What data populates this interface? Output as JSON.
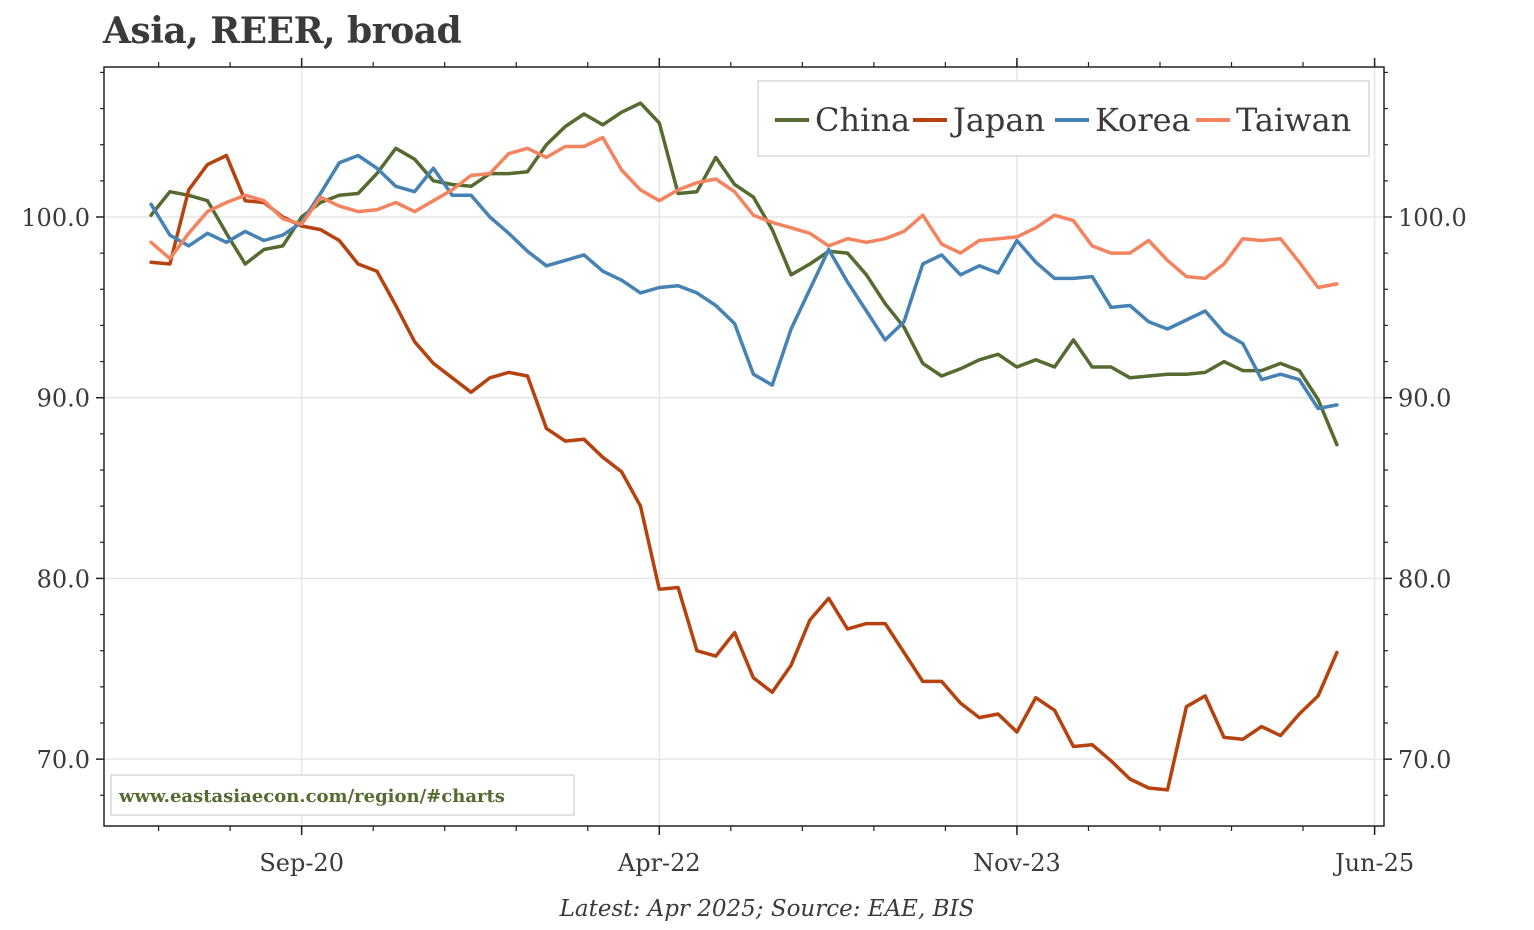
{
  "title": "Asia, REER, broad",
  "source": "Latest: Apr 2025; Source: EAE, BIS",
  "watermark": "www.eastasiaecon.com/region/#charts",
  "colors": {
    "China": "#556b2f",
    "Japan": "#b5420f",
    "Korea": "#4682b4",
    "Taiwan": "#f4845f",
    "watermark": "#556b2f",
    "text": "#3a3a3a",
    "grid": "#e6e6e6"
  },
  "chart_data": {
    "type": "line",
    "title": "Asia, REER, broad",
    "xlabel": "",
    "ylabel": "",
    "x_start": "Jan 2020",
    "x_end": "Apr 2025",
    "frequency": "monthly",
    "xlim_months": [
      -2.5,
      65.5
    ],
    "ylim": [
      66.3,
      108.3
    ],
    "yticks": [
      70,
      80,
      90,
      100
    ],
    "ytick_labels": [
      "70.0",
      "80.0",
      "90.0",
      "100.0"
    ],
    "xticks": [
      {
        "month_index": 8,
        "label": "Sep-20"
      },
      {
        "month_index": 27,
        "label": "Apr-22"
      },
      {
        "month_index": 46,
        "label": "Nov-23"
      },
      {
        "month_index": 65,
        "label": "Jun-25"
      }
    ],
    "legend_position": "top-right",
    "grid": true,
    "series": [
      {
        "name": "China",
        "values": [
          100.1,
          101.4,
          101.2,
          100.9,
          99.1,
          97.4,
          98.2,
          98.4,
          100.0,
          100.8,
          101.2,
          101.3,
          102.4,
          103.8,
          103.2,
          102.0,
          101.8,
          101.7,
          102.4,
          102.4,
          102.5,
          104.0,
          105.0,
          105.7,
          105.1,
          105.8,
          106.3,
          105.2,
          101.3,
          101.4,
          103.3,
          101.8,
          101.1,
          99.3,
          96.8,
          97.4,
          98.1,
          98.0,
          96.8,
          95.2,
          93.9,
          91.9,
          91.2,
          91.6,
          92.1,
          92.4,
          91.7,
          92.1,
          91.7,
          93.2,
          91.7,
          91.7,
          91.1,
          91.2,
          91.3,
          91.3,
          91.4,
          92.0,
          91.5,
          91.5,
          91.9,
          91.5,
          89.9,
          87.4
        ]
      },
      {
        "name": "Japan",
        "values": [
          97.5,
          97.4,
          101.5,
          102.9,
          103.4,
          100.9,
          100.8,
          100.0,
          99.5,
          99.3,
          98.7,
          97.4,
          97.0,
          95.1,
          93.1,
          91.9,
          91.1,
          90.3,
          91.1,
          91.4,
          91.2,
          88.3,
          87.6,
          87.7,
          86.7,
          85.9,
          84.0,
          79.4,
          79.5,
          76.0,
          75.7,
          77.0,
          74.5,
          73.7,
          75.2,
          77.7,
          78.9,
          77.2,
          77.5,
          77.5,
          75.9,
          74.3,
          74.3,
          73.1,
          72.3,
          72.5,
          71.5,
          73.4,
          72.7,
          70.7,
          70.8,
          69.9,
          68.9,
          68.4,
          68.3,
          72.9,
          73.5,
          71.2,
          71.1,
          71.8,
          71.3,
          72.5,
          73.5,
          75.9
        ]
      },
      {
        "name": "Korea",
        "values": [
          100.7,
          99.0,
          98.4,
          99.1,
          98.6,
          99.2,
          98.7,
          99.0,
          99.7,
          101.3,
          103.0,
          103.4,
          102.7,
          101.7,
          101.4,
          102.7,
          101.2,
          101.2,
          100.0,
          99.1,
          98.1,
          97.3,
          97.6,
          97.9,
          97.0,
          96.5,
          95.8,
          96.1,
          96.2,
          95.8,
          95.1,
          94.1,
          91.3,
          90.7,
          93.8,
          96.0,
          98.2,
          96.4,
          94.8,
          93.2,
          94.2,
          97.4,
          97.9,
          96.8,
          97.3,
          96.9,
          98.7,
          97.5,
          96.6,
          96.6,
          96.7,
          95.0,
          95.1,
          94.2,
          93.8,
          94.3,
          94.8,
          93.6,
          93.0,
          91.0,
          91.3,
          91.0,
          89.4,
          89.6
        ]
      },
      {
        "name": "Taiwan",
        "values": [
          98.6,
          97.7,
          99.1,
          100.3,
          100.8,
          101.2,
          100.9,
          99.9,
          99.6,
          101.1,
          100.6,
          100.3,
          100.4,
          100.8,
          100.3,
          100.9,
          101.5,
          102.3,
          102.4,
          103.5,
          103.8,
          103.3,
          103.9,
          103.9,
          104.4,
          102.6,
          101.5,
          100.9,
          101.5,
          101.9,
          102.1,
          101.4,
          100.1,
          99.7,
          99.4,
          99.1,
          98.4,
          98.8,
          98.6,
          98.8,
          99.2,
          100.1,
          98.5,
          98.0,
          98.7,
          98.8,
          98.9,
          99.4,
          100.1,
          99.8,
          98.4,
          98.0,
          98.0,
          98.7,
          97.6,
          96.7,
          96.6,
          97.4,
          98.8,
          98.7,
          98.8,
          97.5,
          96.1,
          96.3
        ]
      }
    ]
  }
}
